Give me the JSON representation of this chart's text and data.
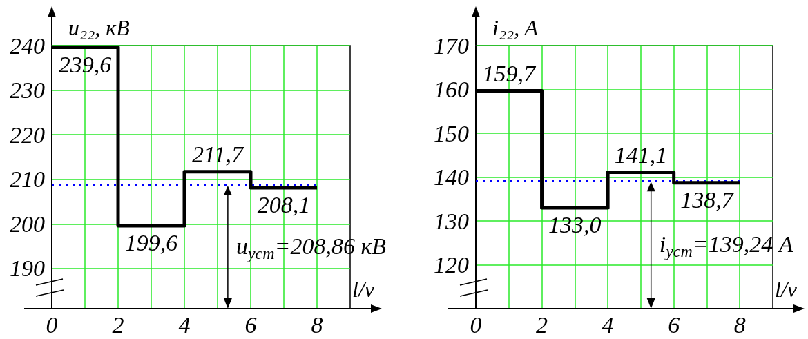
{
  "chart_data": [
    {
      "type": "step",
      "ylabel": "u₂₂, кВ",
      "xlabel": "l/v",
      "x": [
        0,
        2,
        4,
        6,
        8
      ],
      "values": [
        239.6,
        199.6,
        211.7,
        208.1,
        208.1
      ],
      "color": "#000000",
      "value_labels": [
        "239,6",
        "199,6",
        "211,7",
        "208,1",
        null
      ],
      "xlim": [
        0,
        9
      ],
      "xticks": [
        0,
        {
          "value": 1,
          "label": null
        },
        2,
        {
          "value": 3,
          "label": null
        },
        4,
        {
          "value": 5,
          "label": null
        },
        6,
        {
          "value": 7,
          "label": null
        },
        8
      ],
      "ylim": [
        181,
        240
      ],
      "yticks": [
        190,
        200,
        210,
        220,
        230,
        240
      ],
      "grid": true,
      "ref_lines": [
        {
          "axis": "y",
          "value": 208.86,
          "label": "u$_{уст}$=208,86 кВ",
          "color": "#0000ff",
          "line_style": "dotted"
        }
      ]
    },
    {
      "type": "step",
      "ylabel": "i₂₂, A",
      "xlabel": "l/v",
      "x": [
        0,
        2,
        4,
        6,
        8
      ],
      "values": [
        159.7,
        133.0,
        141.1,
        138.7,
        138.7
      ],
      "color": "#000000",
      "value_labels": [
        "159,7",
        "133,0",
        "141,1",
        "138,7",
        null
      ],
      "xlim": [
        0,
        9
      ],
      "xticks": [
        0,
        {
          "value": 1,
          "label": null
        },
        2,
        {
          "value": 3,
          "label": null
        },
        4,
        {
          "value": 5,
          "label": null
        },
        6,
        {
          "value": 7,
          "label": null
        },
        8
      ],
      "ylim": [
        110,
        170
      ],
      "yticks": [
        120,
        130,
        140,
        150,
        160,
        170
      ],
      "grid": true,
      "ref_lines": [
        {
          "axis": "y",
          "value": 139.24,
          "label": "i$_{уст}$=139,24 A",
          "color": "#0000ff",
          "line_style": "dotted"
        }
      ]
    }
  ]
}
